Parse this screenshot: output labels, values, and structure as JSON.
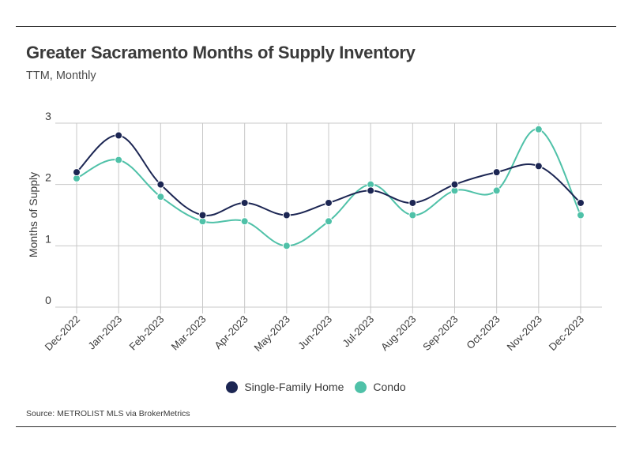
{
  "header": {
    "title": "Greater Sacramento Months of Supply Inventory",
    "subtitle": "TTM, Monthly"
  },
  "footer": {
    "source": "Source:  METROLIST MLS via BrokerMetrics"
  },
  "colors": {
    "single_family": "#1c2653",
    "condo": "#4fc1a8",
    "grid": "#c8c8c8"
  },
  "chart_data": {
    "type": "line",
    "categories": [
      "Dec-2022",
      "Jan-2023",
      "Feb-2023",
      "Mar-2023",
      "Apr-2023",
      "May-2023",
      "Jun-2023",
      "Jul-2023",
      "Aug-2023",
      "Sep-2023",
      "Oct-2023",
      "Nov-2023",
      "Dec-2023"
    ],
    "series": [
      {
        "name": "Single-Family Home",
        "values": [
          2.2,
          2.8,
          2.0,
          1.5,
          1.7,
          1.5,
          1.7,
          1.9,
          1.7,
          2.0,
          2.2,
          2.3,
          1.7
        ]
      },
      {
        "name": "Condo",
        "values": [
          2.1,
          2.4,
          1.8,
          1.4,
          1.4,
          1.0,
          1.4,
          2.0,
          1.5,
          1.9,
          1.9,
          2.9,
          1.5
        ]
      }
    ],
    "ylabel": "Months of Supply",
    "xlabel": "",
    "ylim": [
      0,
      3
    ],
    "yticks": [
      "0",
      "1",
      "2",
      "3"
    ],
    "grid": true,
    "legend": "bottom"
  }
}
